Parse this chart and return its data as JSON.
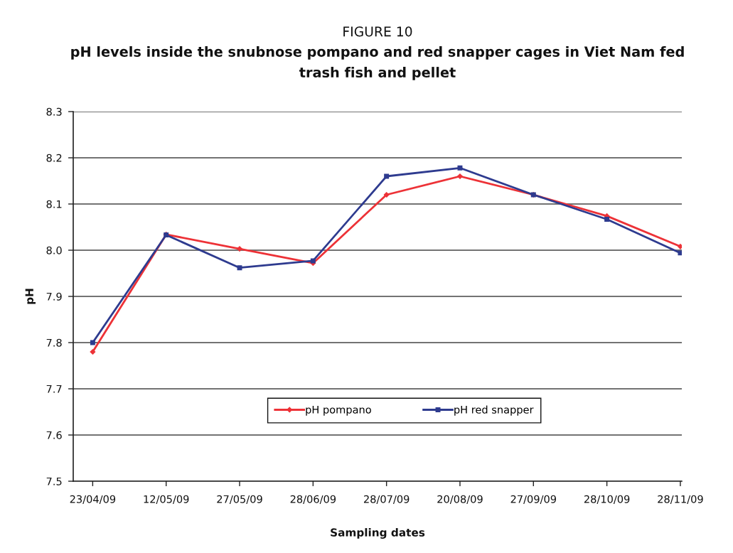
{
  "chart_data": {
    "type": "line",
    "title": "FIGURE 10",
    "subtitle": "pH levels inside the snubnose pompano and red snapper cages in Viet Nam fed trash fish and pellet",
    "xlabel": "Sampling dates",
    "ylabel": "pH",
    "categories": [
      "23/04/09",
      "12/05/09",
      "27/05/09",
      "28/06/09",
      "28/07/09",
      "20/08/09",
      "27/09/09",
      "28/10/09",
      "28/11/09"
    ],
    "series": [
      {
        "name": "pH pompano",
        "color": "#ed3237",
        "marker": "diamond",
        "values": [
          7.78,
          8.034,
          8.003,
          7.972,
          8.12,
          8.16,
          8.12,
          8.074,
          8.008
        ]
      },
      {
        "name": "pH red snapper",
        "color": "#2e3b8f",
        "marker": "square",
        "values": [
          7.8,
          8.033,
          7.962,
          7.977,
          8.16,
          8.178,
          8.12,
          8.067,
          7.994
        ]
      }
    ],
    "ylim": [
      7.5,
      8.3
    ],
    "yticks": [
      7.5,
      7.6,
      7.7,
      7.8,
      7.9,
      {
        "value": 8,
        "label": "8.0"
      },
      8.1,
      8.2,
      8.3
    ],
    "grid": "y",
    "legend": "bottom",
    "line_style": "solid"
  }
}
